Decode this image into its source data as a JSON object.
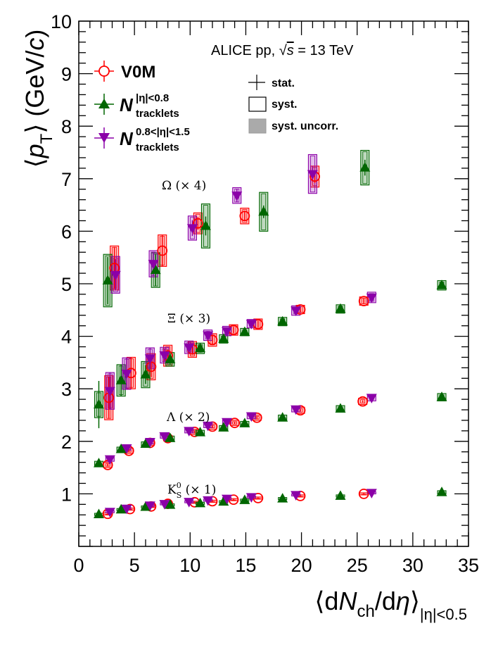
{
  "chart_data": {
    "type": "scatter",
    "title": "ALICE pp, √s = 13 TeV",
    "title_parts": {
      "prefix": "ALICE pp, ",
      "root": "s",
      "suffix": " = 13 TeV"
    },
    "xlabel": "⟨dN_ch/dη⟩_|η|<0.5",
    "ylabel": "⟨p_T⟩ (GeV/c)",
    "xlabel_parts": {
      "open": "⟨d",
      "N": "N",
      "ch": "ch",
      "mid": "/d",
      "eta": "η",
      "close": "⟩",
      "sub": "|η|<0.5"
    },
    "ylabel_parts": {
      "open": "⟨",
      "p": "p",
      "T": "T",
      "close": "⟩ (GeV/",
      "c": "c",
      "end": ")"
    },
    "xlim": [
      0,
      35
    ],
    "ylim": [
      0,
      10
    ],
    "xticks": [
      0,
      5,
      10,
      15,
      20,
      25,
      30,
      35
    ],
    "yticks": [
      1,
      2,
      3,
      4,
      5,
      6,
      7,
      8,
      9,
      10
    ],
    "grid": false,
    "legend": {
      "position": "top-left",
      "entries": [
        {
          "name": "V0M",
          "marker": "open-circle",
          "color": "#ff0000"
        },
        {
          "name": "N",
          "sup": "|η|<0.8",
          "sub": "tracklets",
          "marker": "triangle-up",
          "color": "#006600"
        },
        {
          "name": "N",
          "sup": "0.8<|η|<1.5",
          "sub": "tracklets",
          "marker": "triangle-down",
          "color": "#8b00a8"
        }
      ]
    },
    "uncertainty_legend": {
      "position": "top-center",
      "entries": [
        {
          "label": "stat.",
          "style": "cross"
        },
        {
          "label": "syst.",
          "style": "open-box"
        },
        {
          "label": "syst. uncorr.",
          "style": "filled-box"
        }
      ]
    },
    "annotations": [
      {
        "text": "Ω (× 4)"
      },
      {
        "text": "Ξ (× 3)"
      },
      {
        "text": "Λ (× 2)"
      },
      {
        "base": "K",
        "sup": "0",
        "sub": "S",
        "text": " (× 1)"
      }
    ],
    "series": [
      {
        "name": "Omega V0M",
        "estimator": "V0M",
        "x": [
          3.2,
          7.5,
          10.7,
          14.9,
          21.2
        ],
        "y": [
          5.3,
          5.63,
          6.15,
          6.29,
          7.04
        ],
        "ystat": [
          0.4,
          0.3,
          0.12,
          0.1,
          0.12
        ],
        "ysyst": [
          0.42,
          0.3,
          0.2,
          0.15,
          0.2
        ]
      },
      {
        "name": "Omega N|η|<0.8",
        "estimator": "N|η|<0.8",
        "x": [
          2.6,
          6.9,
          11.4,
          16.6,
          25.7
        ],
        "y": [
          5.06,
          5.26,
          6.1,
          6.37,
          7.21
        ],
        "ystat": [
          0.45,
          0.3,
          0.18,
          0.12,
          0.15
        ],
        "ysyst": [
          0.5,
          0.33,
          0.42,
          0.37,
          0.33
        ]
      },
      {
        "name": "Omega N0.8<|η|<1.5",
        "estimator": "N0.8<|η|<1.5",
        "x": [
          3.3,
          6.7,
          10.2,
          14.2,
          21.0
        ],
        "y": [
          5.17,
          5.38,
          6.06,
          6.68,
          7.09
        ],
        "ystat": [
          0.3,
          0.22,
          0.15,
          0.12,
          0.15
        ],
        "ysyst": [
          0.35,
          0.25,
          0.23,
          0.15,
          0.37
        ]
      },
      {
        "name": "Xi V0M",
        "estimator": "V0M",
        "x": [
          2.7,
          4.7,
          6.5,
          8.0,
          10.2,
          12.0,
          13.9,
          16.1,
          19.9,
          25.6
        ],
        "y": [
          2.83,
          3.3,
          3.42,
          3.63,
          3.75,
          3.93,
          4.12,
          4.23,
          4.51,
          4.67
        ],
        "ystat": [
          0.4,
          0.3,
          0.2,
          0.12,
          0.1,
          0.08,
          0.06,
          0.06,
          0.05,
          0.05
        ],
        "ysyst": [
          0.42,
          0.3,
          0.25,
          0.2,
          0.15,
          0.12,
          0.1,
          0.1,
          0.08,
          0.08
        ]
      },
      {
        "name": "Xi N|η|<0.8",
        "estimator": "N|η|<0.8",
        "x": [
          1.8,
          3.8,
          6.0,
          8.2,
          10.9,
          13.0,
          14.9,
          18.3,
          23.5,
          32.6
        ],
        "y": [
          2.7,
          3.16,
          3.27,
          3.56,
          3.77,
          3.95,
          4.08,
          4.28,
          4.52,
          4.97
        ],
        "ystat": [
          0.45,
          0.3,
          0.18,
          0.1,
          0.08,
          0.06,
          0.05,
          0.05,
          0.04,
          0.04
        ],
        "ysyst": [
          0.25,
          0.3,
          0.25,
          0.13,
          0.1,
          0.08,
          0.07,
          0.08,
          0.08,
          0.09
        ]
      },
      {
        "name": "Xi N0.8<|η|<1.5",
        "estimator": "N0.8<|η|<1.5",
        "x": [
          2.8,
          4.3,
          6.4,
          7.7,
          9.9,
          11.6,
          13.3,
          15.5,
          19.5,
          26.3
        ],
        "y": [
          2.96,
          3.29,
          3.58,
          3.64,
          3.79,
          4.02,
          4.1,
          4.24,
          4.49,
          4.74
        ],
        "ystat": [
          0.35,
          0.3,
          0.2,
          0.12,
          0.1,
          0.08,
          0.06,
          0.05,
          0.05,
          0.05
        ],
        "ysyst": [
          0.35,
          0.3,
          0.2,
          0.15,
          0.12,
          0.1,
          0.09,
          0.08,
          0.09,
          0.1
        ]
      },
      {
        "name": "Lambda V0M",
        "estimator": "V0M",
        "x": [
          2.6,
          4.5,
          6.4,
          8.0,
          10.4,
          12.0,
          14.0,
          16.0,
          19.9,
          25.5
        ],
        "y": [
          1.55,
          1.82,
          1.97,
          2.06,
          2.18,
          2.28,
          2.35,
          2.45,
          2.59,
          2.76
        ],
        "ystat": [
          0.03,
          0.02,
          0.02,
          0.02,
          0.02,
          0.02,
          0.02,
          0.02,
          0.02,
          0.02
        ],
        "ysyst": [
          0.05,
          0.05,
          0.05,
          0.05,
          0.05,
          0.05,
          0.05,
          0.05,
          0.06,
          0.06
        ]
      },
      {
        "name": "Lambda N|η|<0.8",
        "estimator": "N|η|<0.8",
        "x": [
          1.8,
          3.8,
          6.0,
          8.2,
          10.9,
          13.0,
          14.9,
          18.3,
          23.5,
          32.6
        ],
        "y": [
          1.58,
          1.85,
          1.95,
          2.06,
          2.17,
          2.26,
          2.34,
          2.45,
          2.62,
          2.84
        ],
        "ystat": [
          0.03,
          0.02,
          0.02,
          0.02,
          0.02,
          0.02,
          0.02,
          0.02,
          0.02,
          0.02
        ],
        "ysyst": [
          0.04,
          0.04,
          0.04,
          0.04,
          0.04,
          0.04,
          0.04,
          0.05,
          0.06,
          0.07
        ]
      },
      {
        "name": "Lambda N0.8<|η|<1.5",
        "estimator": "N0.8<|η|<1.5",
        "x": [
          2.8,
          4.3,
          6.4,
          7.7,
          9.9,
          11.6,
          13.3,
          15.5,
          19.5,
          26.3
        ],
        "y": [
          1.66,
          1.87,
          1.99,
          2.1,
          2.2,
          2.3,
          2.37,
          2.48,
          2.61,
          2.83
        ],
        "ystat": [
          0.03,
          0.02,
          0.02,
          0.02,
          0.02,
          0.02,
          0.02,
          0.02,
          0.02,
          0.02
        ],
        "ysyst": [
          0.04,
          0.04,
          0.04,
          0.04,
          0.04,
          0.04,
          0.04,
          0.05,
          0.05,
          0.06
        ]
      },
      {
        "name": "K0S V0M",
        "estimator": "V0M",
        "x": [
          2.6,
          4.6,
          6.5,
          8.0,
          10.4,
          12.0,
          13.9,
          16.1,
          19.9,
          25.6
        ],
        "y": [
          0.62,
          0.71,
          0.76,
          0.81,
          0.84,
          0.86,
          0.89,
          0.92,
          0.96,
          1.0
        ],
        "ystat": [
          0.01,
          0.01,
          0.01,
          0.01,
          0.01,
          0.01,
          0.01,
          0.01,
          0.01,
          0.01
        ],
        "ysyst": [
          0.02,
          0.02,
          0.02,
          0.02,
          0.02,
          0.02,
          0.02,
          0.02,
          0.02,
          0.02
        ]
      },
      {
        "name": "K0S N|η|<0.8",
        "estimator": "N|η|<0.8",
        "x": [
          1.8,
          3.8,
          6.0,
          8.2,
          10.9,
          13.0,
          14.9,
          18.3,
          23.5,
          32.6
        ],
        "y": [
          0.61,
          0.7,
          0.75,
          0.79,
          0.82,
          0.85,
          0.88,
          0.91,
          0.96,
          1.03
        ],
        "ystat": [
          0.01,
          0.01,
          0.01,
          0.01,
          0.01,
          0.01,
          0.01,
          0.01,
          0.01,
          0.01
        ],
        "ysyst": [
          0.02,
          0.02,
          0.02,
          0.02,
          0.02,
          0.02,
          0.02,
          0.02,
          0.02,
          0.03
        ]
      },
      {
        "name": "K0S N0.8<|η|<1.5",
        "estimator": "N0.8<|η|<1.5",
        "x": [
          2.8,
          4.3,
          6.4,
          7.7,
          9.9,
          11.6,
          13.3,
          15.5,
          19.5,
          26.3
        ],
        "y": [
          0.66,
          0.72,
          0.78,
          0.81,
          0.85,
          0.88,
          0.91,
          0.94,
          0.98,
          1.02
        ],
        "ystat": [
          0.01,
          0.01,
          0.01,
          0.01,
          0.01,
          0.01,
          0.01,
          0.01,
          0.01,
          0.01
        ],
        "ysyst": [
          0.02,
          0.02,
          0.02,
          0.02,
          0.02,
          0.02,
          0.02,
          0.02,
          0.02,
          0.02
        ]
      }
    ],
    "colors": {
      "V0M": "#ff0000",
      "N|η|<0.8": "#006600",
      "N0.8<|η|<1.5": "#8b00a8"
    }
  }
}
